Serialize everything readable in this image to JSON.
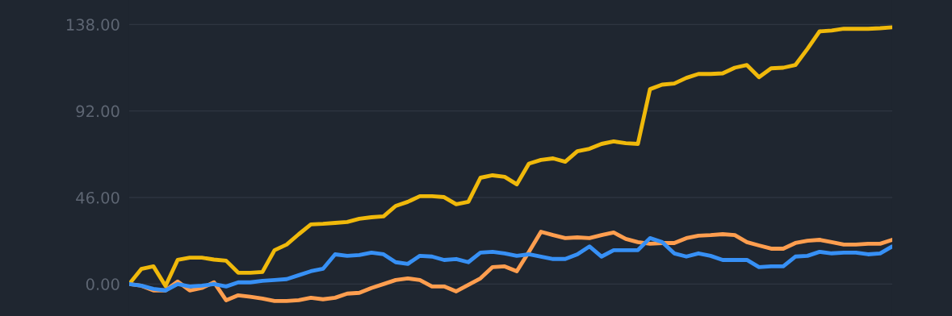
{
  "chart_data": {
    "type": "line",
    "categories": [
      null,
      null,
      null,
      null,
      null,
      null,
      null,
      null,
      null,
      null,
      null,
      null,
      null,
      null,
      null,
      null,
      null,
      null,
      null,
      null,
      null,
      null,
      null,
      null,
      null,
      null,
      null,
      null,
      null,
      null,
      null,
      null,
      null,
      null,
      null,
      null,
      null,
      null,
      null,
      null,
      null,
      null,
      null,
      null,
      null,
      null,
      null,
      null,
      null,
      null,
      null,
      null,
      null,
      null,
      null,
      null,
      null,
      null,
      null,
      null,
      null,
      null,
      null,
      null
    ],
    "series": [
      {
        "color": "#f0b90b",
        "values": [
          0,
          8,
          9.4,
          -1,
          12.8,
          14,
          14,
          13,
          12.4,
          6,
          6,
          6.4,
          18,
          21,
          26.5,
          31.7,
          32,
          32.5,
          33,
          34.7,
          35.5,
          36,
          41.5,
          43.7,
          46.7,
          46.7,
          46.2,
          42.4,
          43.7,
          56.5,
          57.8,
          57,
          53,
          64,
          66,
          66.8,
          65,
          70.6,
          71.9,
          74.5,
          75.8,
          74.9,
          74.5,
          103.6,
          106,
          106.6,
          109.6,
          111.7,
          111.7,
          112,
          115,
          116.4,
          110,
          114.7,
          115,
          116.4,
          125,
          134.3,
          134.8,
          135.7,
          135.7,
          135.7,
          136,
          136.5
        ]
      },
      {
        "color": "#ff9e4f",
        "values": [
          0,
          -0.9,
          -3.4,
          -3.4,
          1.3,
          -3.4,
          -2.1,
          0.9,
          -8.6,
          -6,
          -6.8,
          -7.7,
          -9,
          -9,
          -8.6,
          -7.3,
          -8.1,
          -7.3,
          -5.1,
          -4.7,
          -2.1,
          0,
          2.1,
          3,
          2.1,
          -1.3,
          -1.3,
          -3.9,
          -0.4,
          3,
          9,
          9.4,
          6.8,
          17.1,
          27.8,
          26,
          24.4,
          24.8,
          24.4,
          26,
          27.4,
          24,
          22.3,
          21.4,
          21.8,
          21.8,
          24.4,
          25.7,
          26,
          26.5,
          26,
          22.3,
          20.5,
          18.8,
          18.8,
          21.8,
          23,
          23.5,
          22.3,
          21,
          21,
          21.4,
          21.4,
          23.5
        ]
      },
      {
        "color": "#3790f5",
        "values": [
          0,
          -0.9,
          -2.6,
          -3.4,
          0,
          -1.3,
          -0.9,
          0,
          -1.3,
          0.9,
          0.9,
          1.7,
          2.1,
          2.6,
          4.7,
          6.8,
          8.1,
          15.8,
          15,
          15.4,
          16.7,
          15.8,
          11.6,
          10.7,
          15,
          14.6,
          12.8,
          13.3,
          11.6,
          16.7,
          17.1,
          16.3,
          15,
          15.8,
          14.6,
          13.3,
          13.3,
          15.8,
          20,
          14.6,
          18,
          18,
          18,
          24.4,
          22.3,
          16.3,
          14.6,
          16.3,
          15,
          12.8,
          12.8,
          12.8,
          9,
          9.4,
          9.4,
          14.6,
          15,
          17.1,
          16.3,
          16.7,
          16.7,
          15.8,
          16.3,
          20
        ]
      }
    ],
    "ylim": [
      -17,
      151
    ],
    "yticks": [
      {
        "value": 0,
        "label": "0.00"
      },
      {
        "value": 46,
        "label": "46.00"
      },
      {
        "value": 92,
        "label": "92.00"
      },
      {
        "value": 138,
        "label": "138.00"
      }
    ],
    "grid": "y",
    "tick_labels": "y",
    "line_style": "solid",
    "marker": "none",
    "legend": false
  }
}
